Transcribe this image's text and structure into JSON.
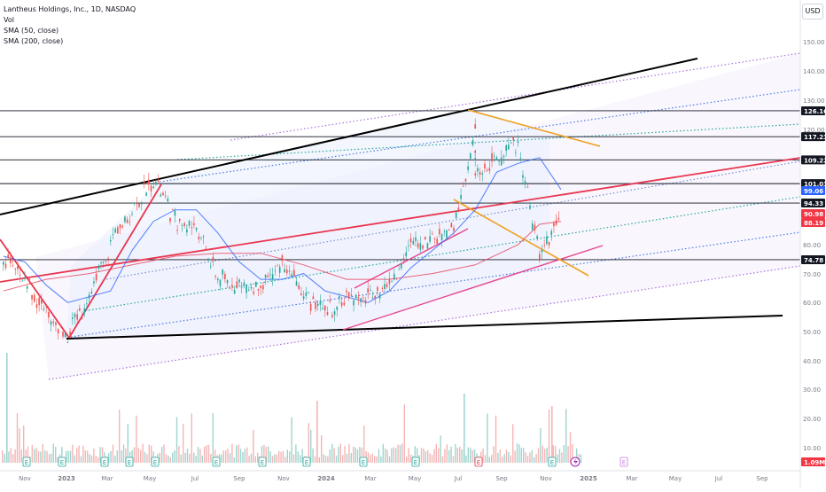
{
  "legend": {
    "title": "Lantheus Holdings, Inc., 1D, NASDAQ",
    "vol": "Vol",
    "sma50": "SMA (50, close)",
    "sma200": "SMA (200, close)"
  },
  "currency": "USD",
  "chart_data": {
    "type": "candlestick",
    "symbol": "Lantheus Holdings, Inc.",
    "interval": "1D",
    "exchange": "NASDAQ",
    "currency": "USD",
    "ylim": [
      20,
      150
    ],
    "y_ticks": [
      "150.00",
      "140.00",
      "130.00",
      "120.00",
      "110.00",
      "100.00",
      "90.00",
      "80.00",
      "70.00",
      "60.00",
      "50.00",
      "40.00",
      "30.00",
      "20.00",
      "10.00"
    ],
    "x_ticks": [
      "Nov",
      "2023",
      "Mar",
      "May",
      "Jul",
      "Sep",
      "Nov",
      "2024",
      "Mar",
      "May",
      "Jul",
      "Sep",
      "Nov",
      "2025",
      "Mar",
      "May",
      "Jul",
      "Sep"
    ],
    "horizontal_levels": [
      "126.16",
      "117.23",
      "109.22",
      "101.03",
      "94.33",
      "74.78"
    ],
    "price_badges": [
      {
        "label": "99.06",
        "color": "#2962ff"
      },
      {
        "label": "90.98",
        "color": "#f23645"
      },
      {
        "label": "88.19",
        "color": "#f23645"
      }
    ],
    "volume_badge": {
      "label": "1.09M",
      "color": "#f23645"
    },
    "earnings_markers": [
      "E",
      "E",
      "E",
      "E",
      "E",
      "E",
      "E",
      "E",
      "E",
      "E",
      "E",
      "E",
      "E"
    ],
    "event_marker": "lightning",
    "price_path": [
      [
        "Oct 2022",
        76
      ],
      [
        "Nov 2022",
        68
      ],
      [
        "Dec 2022",
        56
      ],
      [
        "Jan 2023",
        49
      ],
      [
        "Feb 2023",
        62
      ],
      [
        "Mar 2023",
        80
      ],
      [
        "Apr 2023",
        92
      ],
      [
        "May 2023",
        103
      ],
      [
        "Jun 2023",
        88
      ],
      [
        "Jul 2023",
        86
      ],
      [
        "Aug 2023",
        68
      ],
      [
        "Sep 2023",
        66
      ],
      [
        "Oct 2023",
        64
      ],
      [
        "Nov 2023",
        74
      ],
      [
        "Dec 2023",
        63
      ],
      [
        "Jan 2024",
        56
      ],
      [
        "Feb 2024",
        62
      ],
      [
        "Mar 2024",
        62
      ],
      [
        "Apr 2024",
        66
      ],
      [
        "May 2024",
        80
      ],
      [
        "Jun 2024",
        82
      ],
      [
        "Jul 2024",
        85
      ],
      [
        "Aug 2024",
        118
      ],
      [
        "Aug 2024",
        103
      ],
      [
        "Sep 2024",
        110
      ],
      [
        "Oct 2024",
        115
      ],
      [
        "Nov 2024",
        76
      ],
      [
        "Dec 2024",
        90
      ]
    ],
    "sma50_path": [
      [
        "Oct 2022",
        76
      ],
      [
        "Nov 2022",
        74
      ],
      [
        "Dec 2022",
        66
      ],
      [
        "Jan 2023",
        60
      ],
      [
        "Mar 2023",
        64
      ],
      [
        "Apr 2023",
        78
      ],
      [
        "May 2023",
        88
      ],
      [
        "Jun 2023",
        92
      ],
      [
        "Jul 2023",
        92
      ],
      [
        "Aug 2023",
        84
      ],
      [
        "Sep 2023",
        74
      ],
      [
        "Oct 2023",
        68
      ],
      [
        "Nov 2023",
        68
      ],
      [
        "Dec 2023",
        70
      ],
      [
        "Jan 2024",
        64
      ],
      [
        "Mar 2024",
        60
      ],
      [
        "Apr 2024",
        64
      ],
      [
        "May 2024",
        72
      ],
      [
        "Jul 2024",
        84
      ],
      [
        "Aug 2024",
        92
      ],
      [
        "Sep 2024",
        105
      ],
      [
        "Oct 2024",
        108
      ],
      [
        "Nov 2024",
        110
      ],
      [
        "Dec 2024",
        99
      ]
    ],
    "sma200_path": [
      [
        "Oct 2022",
        64
      ],
      [
        "Dec 2022",
        68
      ],
      [
        "Feb 2023",
        70
      ],
      [
        "Apr 2023",
        73
      ],
      [
        "Jun 2023",
        76
      ],
      [
        "Aug 2023",
        77
      ],
      [
        "Oct 2023",
        77
      ],
      [
        "Dec 2023",
        73
      ],
      [
        "Feb 2024",
        68
      ],
      [
        "Apr 2024",
        68
      ],
      [
        "Jun 2024",
        70
      ],
      [
        "Aug 2024",
        73
      ],
      [
        "Oct 2024",
        80
      ],
      [
        "Nov 2024",
        87
      ],
      [
        "Dec 2024",
        88
      ]
    ]
  }
}
